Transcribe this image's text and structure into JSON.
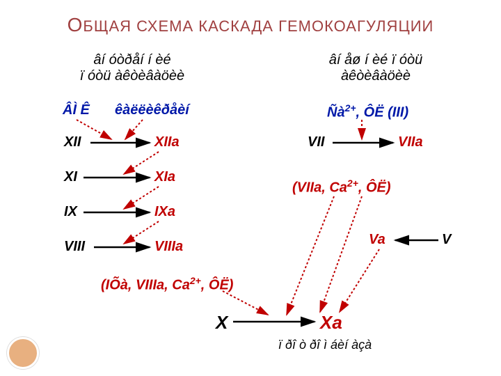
{
  "title_html": "<span class='cap'>О</span>БЩАЯ СХЕМА КАСКАДА ГЕМОКОАГУЛЯЦИИ",
  "left_subtitle": "âí óòðåí í èé\nï óòü àêòèâàöèè",
  "right_subtitle": "âí åø í èé ï óòü\nàêòèâàöèè",
  "blue_left_1": "ÂÌ Ê",
  "blue_left_2": "êàëëèêðåèí",
  "blue_right": "Ñà",
  "blue_right_sup": "2+",
  "blue_right_tail": ", ÔË (III)",
  "factors": {
    "XII": "XII",
    "XIIa": "XIIa",
    "XI": "XI",
    "XIa": "XIa",
    "IX": "IX",
    "IXa": "IXa",
    "VIII": "VIII",
    "VIIIa": "VIIIa",
    "VII": "VII",
    "VIIa": "VIIa",
    "V": "V",
    "Va": "Va",
    "X": "X",
    "Xa": "Xa"
  },
  "complex_left": "(IÕà, VIIIa, Ca",
  "complex_left_sup": "2+",
  "complex_left_tail": ", ÔË)",
  "complex_right": "(VIIa, Ca",
  "complex_right_sup": "2+",
  "complex_right_tail": ", ÔË)",
  "footnote": "ï ðî ò ðî ì áèí àçà",
  "colors": {
    "title": "#a04040",
    "active": "#c00000",
    "blue": "#0018a8",
    "solid_arrow": "#000000",
    "dotted_arrow": "#c00000"
  }
}
